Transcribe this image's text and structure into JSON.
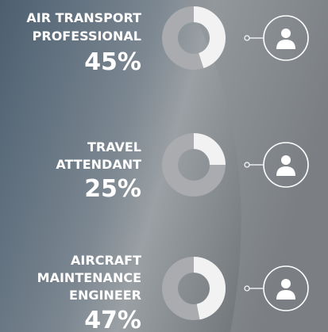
{
  "chart_data": [
    {
      "type": "donut",
      "title": [
        "AIR TRANSPORT",
        "PROFESSIONAL"
      ],
      "values": [
        45
      ],
      "value_labels": [
        "45%"
      ],
      "color": "#f2f2f2",
      "track_color": "#a9abae"
    },
    {
      "type": "donut",
      "title": [
        "TRAVEL",
        "ATTENDANT"
      ],
      "values": [
        25
      ],
      "value_labels": [
        "25%"
      ],
      "color": "#f2f2f2",
      "track_color": "#a9abae"
    },
    {
      "type": "donut",
      "title": [
        "AIRCRAFT",
        "MAINTENANCE",
        "ENGINEER"
      ],
      "values": [
        47
      ],
      "value_labels": [
        "47%"
      ],
      "color": "#f2f2f2",
      "track_color": "#a9abae"
    }
  ]
}
